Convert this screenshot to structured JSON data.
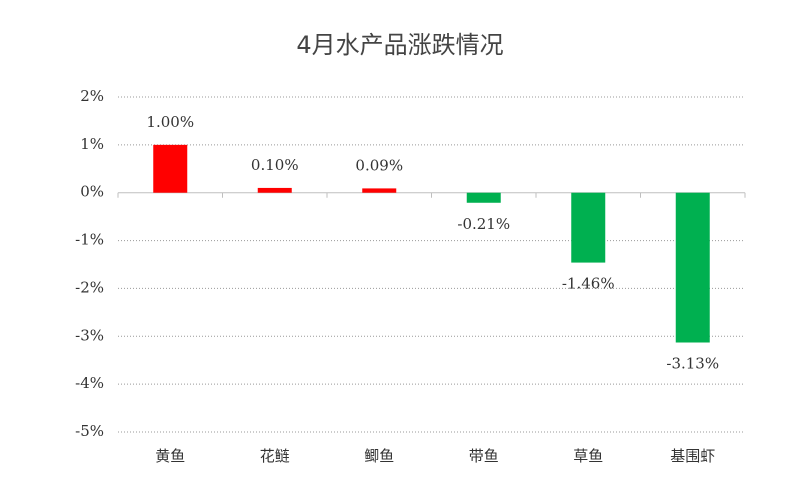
{
  "chart_data": {
    "type": "bar",
    "title": "4月水产品涨跌情况",
    "categories": [
      "黄鱼",
      "花鲢",
      "鲫鱼",
      "带鱼",
      "草鱼",
      "基围虾"
    ],
    "values": [
      1.0,
      0.1,
      0.09,
      -0.21,
      -1.46,
      -3.13
    ],
    "value_labels": [
      "1.00%",
      "0.10%",
      "0.09%",
      "-0.21%",
      "-1.46%",
      "-3.13%"
    ],
    "colors": [
      "#ff0000",
      "#ff0000",
      "#ff0000",
      "#00b050",
      "#00b050",
      "#00b050"
    ],
    "ylim": [
      -5,
      2
    ],
    "yticks": [
      {
        "value": -5,
        "label": "-5%"
      },
      {
        "value": -4,
        "label": "-4%"
      },
      {
        "value": -3,
        "label": "-3%"
      },
      {
        "value": -2,
        "label": "-2%"
      },
      {
        "value": -1,
        "label": "-1%"
      },
      {
        "value": 0,
        "label": "0%"
      },
      {
        "value": 1,
        "label": "1%"
      },
      {
        "value": 2,
        "label": "2%"
      }
    ],
    "grid": true
  }
}
